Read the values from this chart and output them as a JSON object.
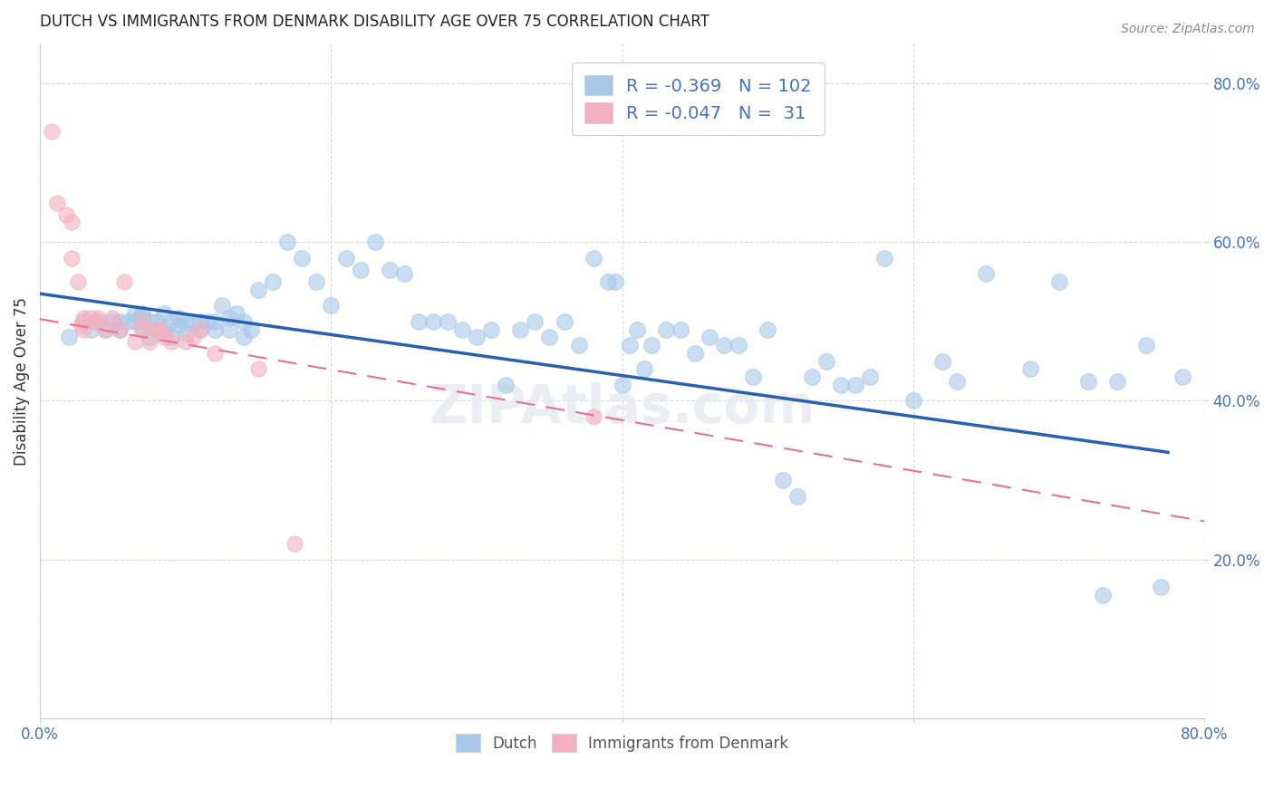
{
  "title": "DUTCH VS IMMIGRANTS FROM DENMARK DISABILITY AGE OVER 75 CORRELATION CHART",
  "source": "Source: ZipAtlas.com",
  "ylabel": "Disability Age Over 75",
  "xlim": [
    0.0,
    0.8
  ],
  "ylim": [
    0.0,
    0.85
  ],
  "xtick_labels": [
    "0.0%",
    "",
    "",
    "",
    "80.0%"
  ],
  "xtick_vals": [
    0.0,
    0.2,
    0.4,
    0.6,
    0.8
  ],
  "ytick_labels": [
    "20.0%",
    "40.0%",
    "60.0%",
    "80.0%"
  ],
  "ytick_vals": [
    0.2,
    0.4,
    0.6,
    0.8
  ],
  "legend_r_dutch": "-0.369",
  "legend_n_dutch": "102",
  "legend_r_imm": "-0.047",
  "legend_n_imm": " 31",
  "dutch_color": "#a8c8e8",
  "imm_color": "#f4afc0",
  "dutch_line_color": "#2860b0",
  "imm_line_color": "#e87090",
  "background_color": "#ffffff",
  "grid_color": "#d8d8e8",
  "dutch_scatter_x": [
    0.02,
    0.03,
    0.035,
    0.04,
    0.045,
    0.05,
    0.055,
    0.055,
    0.06,
    0.065,
    0.065,
    0.07,
    0.07,
    0.07,
    0.075,
    0.075,
    0.08,
    0.085,
    0.085,
    0.09,
    0.09,
    0.095,
    0.095,
    0.1,
    0.1,
    0.105,
    0.11,
    0.11,
    0.115,
    0.12,
    0.12,
    0.125,
    0.13,
    0.13,
    0.135,
    0.14,
    0.14,
    0.145,
    0.15,
    0.16,
    0.17,
    0.18,
    0.19,
    0.2,
    0.21,
    0.22,
    0.23,
    0.24,
    0.25,
    0.26,
    0.27,
    0.28,
    0.29,
    0.3,
    0.31,
    0.32,
    0.33,
    0.34,
    0.35,
    0.36,
    0.37,
    0.38,
    0.39,
    0.395,
    0.4,
    0.405,
    0.41,
    0.415,
    0.42,
    0.43,
    0.44,
    0.45,
    0.46,
    0.47,
    0.48,
    0.49,
    0.5,
    0.51,
    0.52,
    0.53,
    0.54,
    0.55,
    0.56,
    0.57,
    0.58,
    0.6,
    0.62,
    0.63,
    0.65,
    0.68,
    0.7,
    0.72,
    0.73,
    0.74,
    0.76,
    0.77,
    0.785
  ],
  "dutch_scatter_y": [
    0.48,
    0.5,
    0.49,
    0.5,
    0.49,
    0.5,
    0.49,
    0.5,
    0.5,
    0.51,
    0.5,
    0.49,
    0.505,
    0.51,
    0.48,
    0.5,
    0.5,
    0.49,
    0.51,
    0.5,
    0.48,
    0.505,
    0.495,
    0.5,
    0.485,
    0.5,
    0.49,
    0.5,
    0.5,
    0.5,
    0.49,
    0.52,
    0.49,
    0.505,
    0.51,
    0.5,
    0.48,
    0.49,
    0.54,
    0.55,
    0.6,
    0.58,
    0.55,
    0.52,
    0.58,
    0.565,
    0.6,
    0.565,
    0.56,
    0.5,
    0.5,
    0.5,
    0.49,
    0.48,
    0.49,
    0.42,
    0.49,
    0.5,
    0.48,
    0.5,
    0.47,
    0.58,
    0.55,
    0.55,
    0.42,
    0.47,
    0.49,
    0.44,
    0.47,
    0.49,
    0.49,
    0.46,
    0.48,
    0.47,
    0.47,
    0.43,
    0.49,
    0.3,
    0.28,
    0.43,
    0.45,
    0.42,
    0.42,
    0.43,
    0.58,
    0.4,
    0.45,
    0.425,
    0.56,
    0.44,
    0.55,
    0.425,
    0.155,
    0.425,
    0.47,
    0.165,
    0.43
  ],
  "imm_scatter_x": [
    0.008,
    0.012,
    0.018,
    0.022,
    0.022,
    0.026,
    0.028,
    0.03,
    0.03,
    0.035,
    0.038,
    0.04,
    0.045,
    0.05,
    0.055,
    0.058,
    0.065,
    0.07,
    0.07,
    0.075,
    0.08,
    0.082,
    0.085,
    0.09,
    0.1,
    0.105,
    0.11,
    0.12,
    0.15,
    0.175,
    0.38
  ],
  "imm_scatter_y": [
    0.74,
    0.65,
    0.635,
    0.625,
    0.58,
    0.55,
    0.495,
    0.505,
    0.49,
    0.505,
    0.5,
    0.505,
    0.49,
    0.505,
    0.49,
    0.55,
    0.475,
    0.49,
    0.5,
    0.475,
    0.49,
    0.49,
    0.48,
    0.475,
    0.475,
    0.48,
    0.49,
    0.46,
    0.44,
    0.22,
    0.38
  ],
  "dutch_trendline_x": [
    0.0,
    0.775
  ],
  "dutch_trendline_y": [
    0.535,
    0.335
  ],
  "imm_trendline_x": [
    0.0,
    0.8
  ],
  "imm_trendline_y": [
    0.503,
    0.248
  ],
  "watermark": "ZIPAtlas.com"
}
